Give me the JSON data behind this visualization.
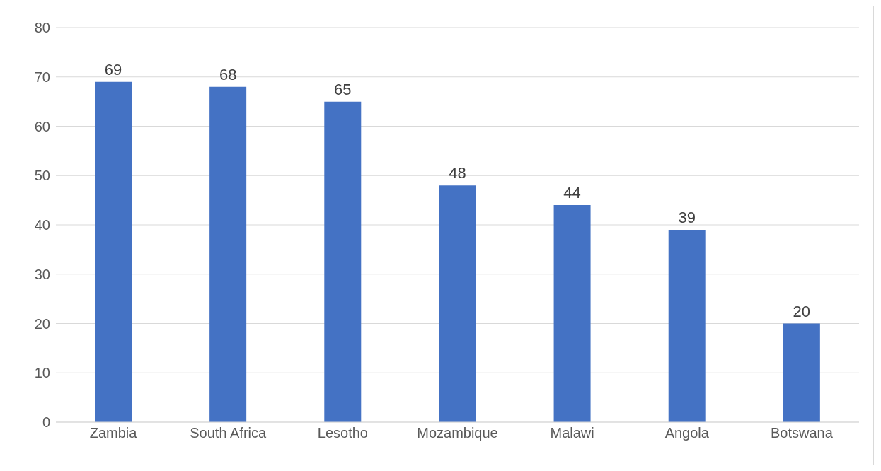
{
  "chart_data": {
    "type": "bar",
    "categories": [
      "Zambia",
      "South Africa",
      "Lesotho",
      "Mozambique",
      "Malawi",
      "Angola",
      "Botswana"
    ],
    "values": [
      69,
      68,
      65,
      48,
      44,
      39,
      20
    ],
    "color": "#4472c4",
    "ylim": [
      0,
      80
    ],
    "yticks": [
      0,
      10,
      20,
      30,
      40,
      50,
      60,
      70,
      80
    ],
    "grid": "y",
    "data_labels": true
  }
}
